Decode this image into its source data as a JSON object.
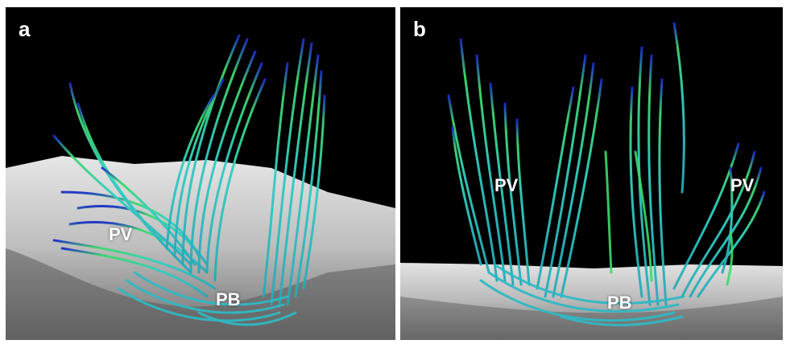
{
  "panels": [
    {
      "label": "a",
      "regions": [
        "PV",
        "PB"
      ]
    },
    {
      "label": "b",
      "regions": [
        "PV",
        "PV",
        "PB"
      ]
    }
  ],
  "colors": {
    "background": "#000000",
    "surface": "#c9c9c9",
    "fiber_primary": "#2fc6c0",
    "fiber_secondary": "#3bdc6a",
    "fiber_tip": "#1b2cc4"
  }
}
